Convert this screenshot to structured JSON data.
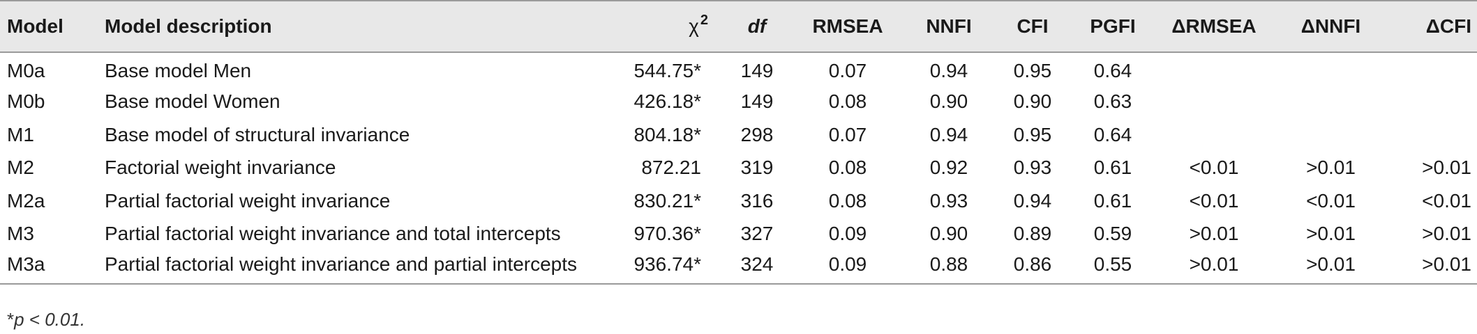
{
  "table": {
    "headers": {
      "model": "Model",
      "description": "Model description",
      "chi2": "χ",
      "chi2_sup": "2",
      "df": "df",
      "rmsea": "RMSEA",
      "nnfi": "NNFI",
      "cfi": "CFI",
      "pgfi": "PGFI",
      "d_rmsea": "ΔRMSEA",
      "d_nnfi": "ΔNNFI",
      "d_cfi": "ΔCFI"
    },
    "rows": [
      {
        "model": "M0a",
        "description": "Base model Men",
        "chi2": "544.75*",
        "df": "149",
        "rmsea": "0.07",
        "nnfi": "0.94",
        "cfi": "0.95",
        "pgfi": "0.64",
        "d_rmsea": "",
        "d_nnfi": "",
        "d_cfi": ""
      },
      {
        "model": "M0b",
        "description": "Base model Women",
        "chi2": "426.18*",
        "df": "149",
        "rmsea": "0.08",
        "nnfi": "0.90",
        "cfi": "0.90",
        "pgfi": "0.63",
        "d_rmsea": "",
        "d_nnfi": "",
        "d_cfi": ""
      },
      {
        "model": "M1",
        "description": "Base model of structural invariance",
        "chi2": "804.18*",
        "df": "298",
        "rmsea": "0.07",
        "nnfi": "0.94",
        "cfi": "0.95",
        "pgfi": "0.64",
        "d_rmsea": "",
        "d_nnfi": "",
        "d_cfi": ""
      },
      {
        "model": "M2",
        "description": "Factorial weight invariance",
        "chi2": "872.21",
        "df": "319",
        "rmsea": "0.08",
        "nnfi": "0.92",
        "cfi": "0.93",
        "pgfi": "0.61",
        "d_rmsea": "<0.01",
        "d_nnfi": ">0.01",
        "d_cfi": ">0.01"
      },
      {
        "model": "M2a",
        "description": "Partial factorial weight invariance",
        "chi2": "830.21*",
        "df": "316",
        "rmsea": "0.08",
        "nnfi": "0.93",
        "cfi": "0.94",
        "pgfi": "0.61",
        "d_rmsea": "<0.01",
        "d_nnfi": "<0.01",
        "d_cfi": "<0.01"
      },
      {
        "model": "M3",
        "description": "Partial factorial weight invariance and total intercepts",
        "chi2": "970.36*",
        "df": "327",
        "rmsea": "0.09",
        "nnfi": "0.90",
        "cfi": "0.89",
        "pgfi": "0.59",
        "d_rmsea": ">0.01",
        "d_nnfi": ">0.01",
        "d_cfi": ">0.01"
      },
      {
        "model": "M3a",
        "description": "Partial factorial weight invariance and partial intercepts",
        "chi2": "936.74*",
        "df": "324",
        "rmsea": "0.09",
        "nnfi": "0.88",
        "cfi": "0.86",
        "pgfi": "0.55",
        "d_rmsea": ">0.01",
        "d_nnfi": ">0.01",
        "d_cfi": ">0.01"
      }
    ]
  },
  "footnote": {
    "star": "*",
    "text": "p < 0.01."
  }
}
